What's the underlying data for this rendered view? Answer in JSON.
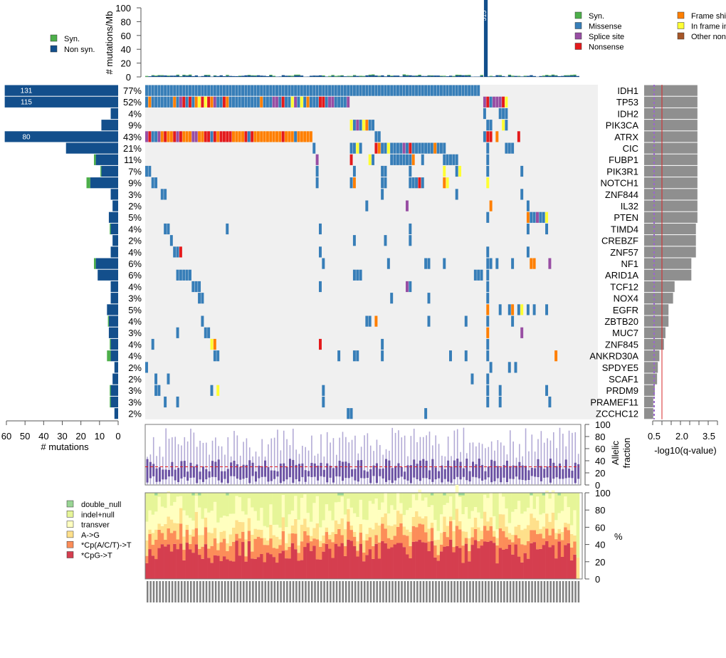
{
  "chart_data": [
    {
      "id": "tmb",
      "type": "bar",
      "title": "",
      "ylabel": "# mutations/Mb",
      "ylim": [
        0,
        100
      ],
      "yticks": [
        0,
        20,
        40,
        60,
        80,
        100
      ],
      "legend": [
        {
          "label": "Syn.",
          "color": "#4daf4a"
        },
        {
          "label": "Non syn.",
          "color": "#134f8c"
        }
      ],
      "legend_position": "left",
      "n_samples": 140,
      "outlier": {
        "sample_index": 109,
        "label": "515"
      },
      "typical_range": [
        0,
        5
      ]
    },
    {
      "id": "oncoprint",
      "type": "heatmap",
      "genes": [
        "IDH1",
        "TP53",
        "IDH2",
        "PIK3CA",
        "ATRX",
        "CIC",
        "FUBP1",
        "PIK3R1",
        "NOTCH1",
        "ZNF844",
        "IL32",
        "PTEN",
        "TIMD4",
        "CREBZF",
        "ZNF57",
        "NF1",
        "ARID1A",
        "TCF12",
        "NOX4",
        "EGFR",
        "ZBTB20",
        "MUC7",
        "ZNF845",
        "ANKRD30A",
        "SPDYE5",
        "SCAF1",
        "PRDM9",
        "PRAMEF11",
        "ZCCHC12"
      ],
      "percent": [
        "77%",
        "52%",
        "4%",
        "9%",
        "43%",
        "21%",
        "11%",
        "7%",
        "9%",
        "3%",
        "2%",
        "5%",
        "4%",
        "2%",
        "4%",
        "6%",
        "6%",
        "4%",
        "3%",
        "5%",
        "4%",
        "3%",
        "4%",
        "4%",
        "2%",
        "2%",
        "3%",
        "3%",
        "2%"
      ],
      "legend": [
        {
          "label": "Syn.",
          "color": "#4daf4a"
        },
        {
          "label": "Missense",
          "color": "#377eb8"
        },
        {
          "label": "Splice site",
          "color": "#984ea3"
        },
        {
          "label": "Nonsense",
          "color": "#e41a1c"
        },
        {
          "label": "Frame shift",
          "color": "#ff7f00"
        },
        {
          "label": "In frame indel",
          "color": "#ffff33"
        },
        {
          "label": "Other non syn.",
          "color": "#a65628"
        }
      ],
      "legend_position": "top-right"
    },
    {
      "id": "gene-counts",
      "type": "bar",
      "orientation": "horizontal",
      "xlabel": "# mutations",
      "xlim": [
        60,
        0
      ],
      "xticks": [
        60,
        50,
        40,
        30,
        20,
        10,
        0
      ],
      "series": [
        {
          "name": "Non syn.",
          "values": [
            131,
            115,
            4,
            9,
            80,
            28,
            12,
            9,
            15,
            4,
            3,
            5,
            4,
            3,
            4,
            12,
            11,
            4,
            4,
            6,
            5,
            5,
            4,
            4,
            2,
            3,
            4,
            4,
            2
          ]
        },
        {
          "name": "Syn.",
          "values": [
            0,
            0,
            0,
            0,
            0,
            0,
            1,
            0.5,
            2,
            0,
            0,
            0,
            0.5,
            0,
            0,
            1,
            0,
            0,
            0,
            0,
            0.5,
            0,
            0.5,
            2,
            0,
            0,
            0.5,
            0.5,
            0
          ]
        }
      ],
      "bar_labels": {
        "0": "131",
        "1": "115",
        "4": "80"
      }
    },
    {
      "id": "qvalue",
      "type": "bar",
      "orientation": "horizontal",
      "xlabel": "-log10(q-value)",
      "xticks": [
        "0.5",
        "2.0",
        "3.5"
      ],
      "threshold_solid": 1.0,
      "threshold_dashed": 0.5,
      "values": [
        3.5,
        3.5,
        3.5,
        3.5,
        3.5,
        3.5,
        3.5,
        3.5,
        3.5,
        3.5,
        3.5,
        3.5,
        3.4,
        3.4,
        3.4,
        3.1,
        3.1,
        2.0,
        1.9,
        1.6,
        1.6,
        1.4,
        1.3,
        1.0,
        0.9,
        0.85,
        0.7,
        0.6,
        0.6
      ]
    },
    {
      "id": "allelic-fraction",
      "type": "box",
      "ylabel": "Allelic fraction",
      "ylim": [
        0,
        100
      ],
      "yticks": [
        0,
        20,
        40,
        60,
        80,
        100
      ],
      "median_line": 30
    },
    {
      "id": "spectrum",
      "type": "bar",
      "stacked": true,
      "ylabel": "%",
      "ylim": [
        0,
        100
      ],
      "yticks": [
        0,
        20,
        40,
        60,
        80,
        100
      ],
      "legend": [
        {
          "label": "double_null",
          "color": "#99d594"
        },
        {
          "label": "indel+null",
          "color": "#e6f598"
        },
        {
          "label": "transver",
          "color": "#ffffbf"
        },
        {
          "label": "A->G",
          "color": "#fee08b"
        },
        {
          "label": "*Cp(A/C/T)->T",
          "color": "#fc8d59"
        },
        {
          "label": "*CpG->T",
          "color": "#d53e4f"
        }
      ],
      "legend_position": "left",
      "typical_mean": {
        "CpG": 30,
        "CpACT": 15,
        "AG": 12,
        "transver": 20,
        "indel_null": 20,
        "double_null": 1
      }
    }
  ]
}
